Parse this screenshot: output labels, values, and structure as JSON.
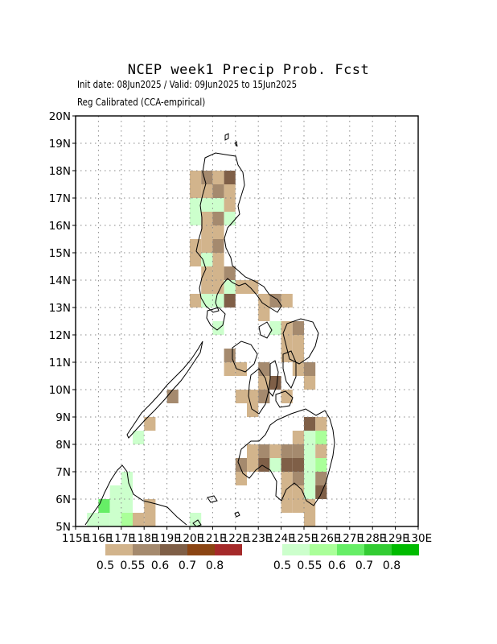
{
  "title": "NCEP week1 Precip Prob. Fcst",
  "subtitle1": "Init date: 08Jun2025 / Valid: 09Jun2025 to 15Jun2025",
  "subtitle2": "Reg Calibrated (CCA-empirical)",
  "axes": {
    "lon_range": [
      115,
      130
    ],
    "lat_range": [
      5,
      20
    ],
    "lon_labels": [
      "115E",
      "116E",
      "117E",
      "118E",
      "119E",
      "120E",
      "121E",
      "122E",
      "123E",
      "124E",
      "125E",
      "126E",
      "127E",
      "128E",
      "129E",
      "130E"
    ],
    "lat_labels": [
      "5N",
      "6N",
      "7N",
      "8N",
      "9N",
      "10N",
      "11N",
      "12N",
      "13N",
      "14N",
      "15N",
      "16N",
      "17N",
      "18N",
      "19N",
      "20N"
    ],
    "grid": "dotted"
  },
  "colors": {
    "below": [
      "#d2b48c",
      "#a58a6e",
      "#7f5f47",
      "#8b4513",
      "#a52a2a"
    ],
    "above": [
      "#ccffcc",
      "#aaff99",
      "#66ee66",
      "#33cc33",
      "#00bb00"
    ]
  },
  "legend": {
    "below_labels": [
      "0.5",
      "0.55",
      "0.6",
      "0.7",
      "0.8"
    ],
    "above_labels": [
      "0.5",
      "0.55",
      "0.6",
      "0.7",
      "0.8"
    ]
  },
  "cells": [
    {
      "lon": 120.25,
      "lat": 17.75,
      "cat": "below",
      "level": 0
    },
    {
      "lon": 120.75,
      "lat": 17.75,
      "cat": "below",
      "level": 1
    },
    {
      "lon": 121.25,
      "lat": 17.75,
      "cat": "below",
      "level": 0
    },
    {
      "lon": 121.75,
      "lat": 17.75,
      "cat": "below",
      "level": 2
    },
    {
      "lon": 120.25,
      "lat": 17.25,
      "cat": "below",
      "level": 0
    },
    {
      "lon": 120.75,
      "lat": 17.25,
      "cat": "below",
      "level": 0
    },
    {
      "lon": 121.25,
      "lat": 17.25,
      "cat": "below",
      "level": 1
    },
    {
      "lon": 121.75,
      "lat": 17.25,
      "cat": "below",
      "level": 0
    },
    {
      "lon": 120.25,
      "lat": 16.75,
      "cat": "above",
      "level": 0
    },
    {
      "lon": 120.75,
      "lat": 16.75,
      "cat": "above",
      "level": 0
    },
    {
      "lon": 121.25,
      "lat": 16.75,
      "cat": "above",
      "level": 0
    },
    {
      "lon": 121.75,
      "lat": 16.75,
      "cat": "below",
      "level": 0
    },
    {
      "lon": 120.25,
      "lat": 16.25,
      "cat": "above",
      "level": 0
    },
    {
      "lon": 120.75,
      "lat": 16.25,
      "cat": "below",
      "level": 0
    },
    {
      "lon": 121.25,
      "lat": 16.25,
      "cat": "below",
      "level": 1
    },
    {
      "lon": 121.75,
      "lat": 16.25,
      "cat": "above",
      "level": 0
    },
    {
      "lon": 120.75,
      "lat": 15.75,
      "cat": "below",
      "level": 0
    },
    {
      "lon": 121.25,
      "lat": 15.75,
      "cat": "below",
      "level": 0
    },
    {
      "lon": 120.25,
      "lat": 15.25,
      "cat": "below",
      "level": 0
    },
    {
      "lon": 120.75,
      "lat": 15.25,
      "cat": "below",
      "level": 0
    },
    {
      "lon": 121.25,
      "lat": 15.25,
      "cat": "below",
      "level": 1
    },
    {
      "lon": 120.25,
      "lat": 14.75,
      "cat": "below",
      "level": 0
    },
    {
      "lon": 120.75,
      "lat": 14.75,
      "cat": "above",
      "level": 0
    },
    {
      "lon": 121.25,
      "lat": 14.75,
      "cat": "below",
      "level": 0
    },
    {
      "lon": 120.75,
      "lat": 14.25,
      "cat": "below",
      "level": 0
    },
    {
      "lon": 121.25,
      "lat": 14.25,
      "cat": "below",
      "level": 0
    },
    {
      "lon": 121.75,
      "lat": 14.25,
      "cat": "below",
      "level": 1
    },
    {
      "lon": 120.75,
      "lat": 13.75,
      "cat": "below",
      "level": 0
    },
    {
      "lon": 121.25,
      "lat": 13.75,
      "cat": "below",
      "level": 0
    },
    {
      "lon": 121.75,
      "lat": 13.75,
      "cat": "above",
      "level": 0
    },
    {
      "lon": 122.25,
      "lat": 13.75,
      "cat": "below",
      "level": 0
    },
    {
      "lon": 122.75,
      "lat": 13.75,
      "cat": "below",
      "level": 0
    },
    {
      "lon": 120.25,
      "lat": 13.25,
      "cat": "below",
      "level": 0
    },
    {
      "lon": 120.75,
      "lat": 13.25,
      "cat": "above",
      "level": 0
    },
    {
      "lon": 121.25,
      "lat": 13.25,
      "cat": "above",
      "level": 0
    },
    {
      "lon": 121.75,
      "lat": 13.25,
      "cat": "below",
      "level": 2
    },
    {
      "lon": 123.25,
      "lat": 13.25,
      "cat": "below",
      "level": 0
    },
    {
      "lon": 123.75,
      "lat": 13.25,
      "cat": "below",
      "level": 1
    },
    {
      "lon": 124.25,
      "lat": 13.25,
      "cat": "below",
      "level": 0
    },
    {
      "lon": 123.25,
      "lat": 12.75,
      "cat": "below",
      "level": 0
    },
    {
      "lon": 121.25,
      "lat": 12.25,
      "cat": "above",
      "level": 0
    },
    {
      "lon": 123.75,
      "lat": 12.25,
      "cat": "above",
      "level": 0
    },
    {
      "lon": 124.25,
      "lat": 12.25,
      "cat": "below",
      "level": 0
    },
    {
      "lon": 124.75,
      "lat": 12.25,
      "cat": "below",
      "level": 1
    },
    {
      "lon": 124.25,
      "lat": 11.75,
      "cat": "below",
      "level": 0
    },
    {
      "lon": 124.75,
      "lat": 11.75,
      "cat": "below",
      "level": 0
    },
    {
      "lon": 121.75,
      "lat": 11.25,
      "cat": "below",
      "level": 1
    },
    {
      "lon": 124.25,
      "lat": 11.25,
      "cat": "below",
      "level": 0
    },
    {
      "lon": 124.75,
      "lat": 11.25,
      "cat": "below",
      "level": 0
    },
    {
      "lon": 121.75,
      "lat": 10.75,
      "cat": "below",
      "level": 0
    },
    {
      "lon": 122.25,
      "lat": 10.75,
      "cat": "below",
      "level": 0
    },
    {
      "lon": 123.25,
      "lat": 10.75,
      "cat": "below",
      "level": 1
    },
    {
      "lon": 124.75,
      "lat": 10.75,
      "cat": "below",
      "level": 0
    },
    {
      "lon": 125.25,
      "lat": 10.75,
      "cat": "below",
      "level": 1
    },
    {
      "lon": 123.25,
      "lat": 10.25,
      "cat": "below",
      "level": 0
    },
    {
      "lon": 123.75,
      "lat": 10.25,
      "cat": "below",
      "level": 2
    },
    {
      "lon": 125.25,
      "lat": 10.25,
      "cat": "below",
      "level": 0
    },
    {
      "lon": 119.25,
      "lat": 9.75,
      "cat": "below",
      "level": 1
    },
    {
      "lon": 122.25,
      "lat": 9.75,
      "cat": "below",
      "level": 0
    },
    {
      "lon": 122.75,
      "lat": 9.75,
      "cat": "below",
      "level": 0
    },
    {
      "lon": 123.25,
      "lat": 9.75,
      "cat": "below",
      "level": 1
    },
    {
      "lon": 124.25,
      "lat": 9.75,
      "cat": "below",
      "level": 0
    },
    {
      "lon": 122.75,
      "lat": 9.25,
      "cat": "below",
      "level": 0
    },
    {
      "lon": 118.25,
      "lat": 8.75,
      "cat": "below",
      "level": 0
    },
    {
      "lon": 125.25,
      "lat": 8.75,
      "cat": "below",
      "level": 2
    },
    {
      "lon": 125.75,
      "lat": 8.75,
      "cat": "below",
      "level": 0
    },
    {
      "lon": 117.75,
      "lat": 8.25,
      "cat": "above",
      "level": 0
    },
    {
      "lon": 124.75,
      "lat": 8.25,
      "cat": "below",
      "level": 0
    },
    {
      "lon": 125.25,
      "lat": 8.25,
      "cat": "above",
      "level": 0
    },
    {
      "lon": 125.75,
      "lat": 8.25,
      "cat": "above",
      "level": 1
    },
    {
      "lon": 122.75,
      "lat": 7.75,
      "cat": "below",
      "level": 0
    },
    {
      "lon": 123.25,
      "lat": 7.75,
      "cat": "below",
      "level": 1
    },
    {
      "lon": 123.75,
      "lat": 7.75,
      "cat": "below",
      "level": 0
    },
    {
      "lon": 124.25,
      "lat": 7.75,
      "cat": "below",
      "level": 1
    },
    {
      "lon": 124.75,
      "lat": 7.75,
      "cat": "below",
      "level": 1
    },
    {
      "lon": 125.25,
      "lat": 7.75,
      "cat": "above",
      "level": 0
    },
    {
      "lon": 125.75,
      "lat": 7.75,
      "cat": "below",
      "level": 0
    },
    {
      "lon": 122.25,
      "lat": 7.25,
      "cat": "below",
      "level": 1
    },
    {
      "lon": 122.75,
      "lat": 7.25,
      "cat": "below",
      "level": 0
    },
    {
      "lon": 123.25,
      "lat": 7.25,
      "cat": "below",
      "level": 2
    },
    {
      "lon": 123.75,
      "lat": 7.25,
      "cat": "above",
      "level": 0
    },
    {
      "lon": 124.25,
      "lat": 7.25,
      "cat": "below",
      "level": 2
    },
    {
      "lon": 124.75,
      "lat": 7.25,
      "cat": "below",
      "level": 2
    },
    {
      "lon": 125.25,
      "lat": 7.25,
      "cat": "above",
      "level": 0
    },
    {
      "lon": 125.75,
      "lat": 7.25,
      "cat": "above",
      "level": 1
    },
    {
      "lon": 122.25,
      "lat": 6.75,
      "cat": "below",
      "level": 0
    },
    {
      "lon": 124.25,
      "lat": 6.75,
      "cat": "below",
      "level": 0
    },
    {
      "lon": 124.75,
      "lat": 6.75,
      "cat": "below",
      "level": 1
    },
    {
      "lon": 125.25,
      "lat": 6.75,
      "cat": "above",
      "level": 0
    },
    {
      "lon": 125.75,
      "lat": 6.75,
      "cat": "below",
      "level": 1
    },
    {
      "lon": 117.25,
      "lat": 6.75,
      "cat": "above",
      "level": 0
    },
    {
      "lon": 124.25,
      "lat": 6.25,
      "cat": "below",
      "level": 0
    },
    {
      "lon": 124.75,
      "lat": 6.25,
      "cat": "below",
      "level": 0
    },
    {
      "lon": 125.25,
      "lat": 6.25,
      "cat": "above",
      "level": 0
    },
    {
      "lon": 125.75,
      "lat": 6.25,
      "cat": "below",
      "level": 2
    },
    {
      "lon": 116.75,
      "lat": 6.25,
      "cat": "above",
      "level": 0
    },
    {
      "lon": 117.25,
      "lat": 6.25,
      "cat": "above",
      "level": 0
    },
    {
      "lon": 116.25,
      "lat": 5.75,
      "cat": "above",
      "level": 2
    },
    {
      "lon": 116.75,
      "lat": 5.75,
      "cat": "above",
      "level": 0
    },
    {
      "lon": 117.25,
      "lat": 5.75,
      "cat": "above",
      "level": 0
    },
    {
      "lon": 118.25,
      "lat": 5.75,
      "cat": "below",
      "level": 0
    },
    {
      "lon": 124.25,
      "lat": 5.75,
      "cat": "below",
      "level": 0
    },
    {
      "lon": 124.75,
      "lat": 5.75,
      "cat": "below",
      "level": 0
    },
    {
      "lon": 125.25,
      "lat": 5.75,
      "cat": "below",
      "level": 0
    },
    {
      "lon": 115.75,
      "lat": 5.25,
      "cat": "above",
      "level": 0
    },
    {
      "lon": 116.25,
      "lat": 5.25,
      "cat": "above",
      "level": 0
    },
    {
      "lon": 116.75,
      "lat": 5.25,
      "cat": "above",
      "level": 0
    },
    {
      "lon": 117.25,
      "lat": 5.25,
      "cat": "above",
      "level": 1
    },
    {
      "lon": 117.75,
      "lat": 5.25,
      "cat": "below",
      "level": 0
    },
    {
      "lon": 118.25,
      "lat": 5.25,
      "cat": "below",
      "level": 0
    },
    {
      "lon": 120.25,
      "lat": 5.25,
      "cat": "above",
      "level": 0
    },
    {
      "lon": 125.25,
      "lat": 5.25,
      "cat": "below",
      "level": 0
    }
  ]
}
